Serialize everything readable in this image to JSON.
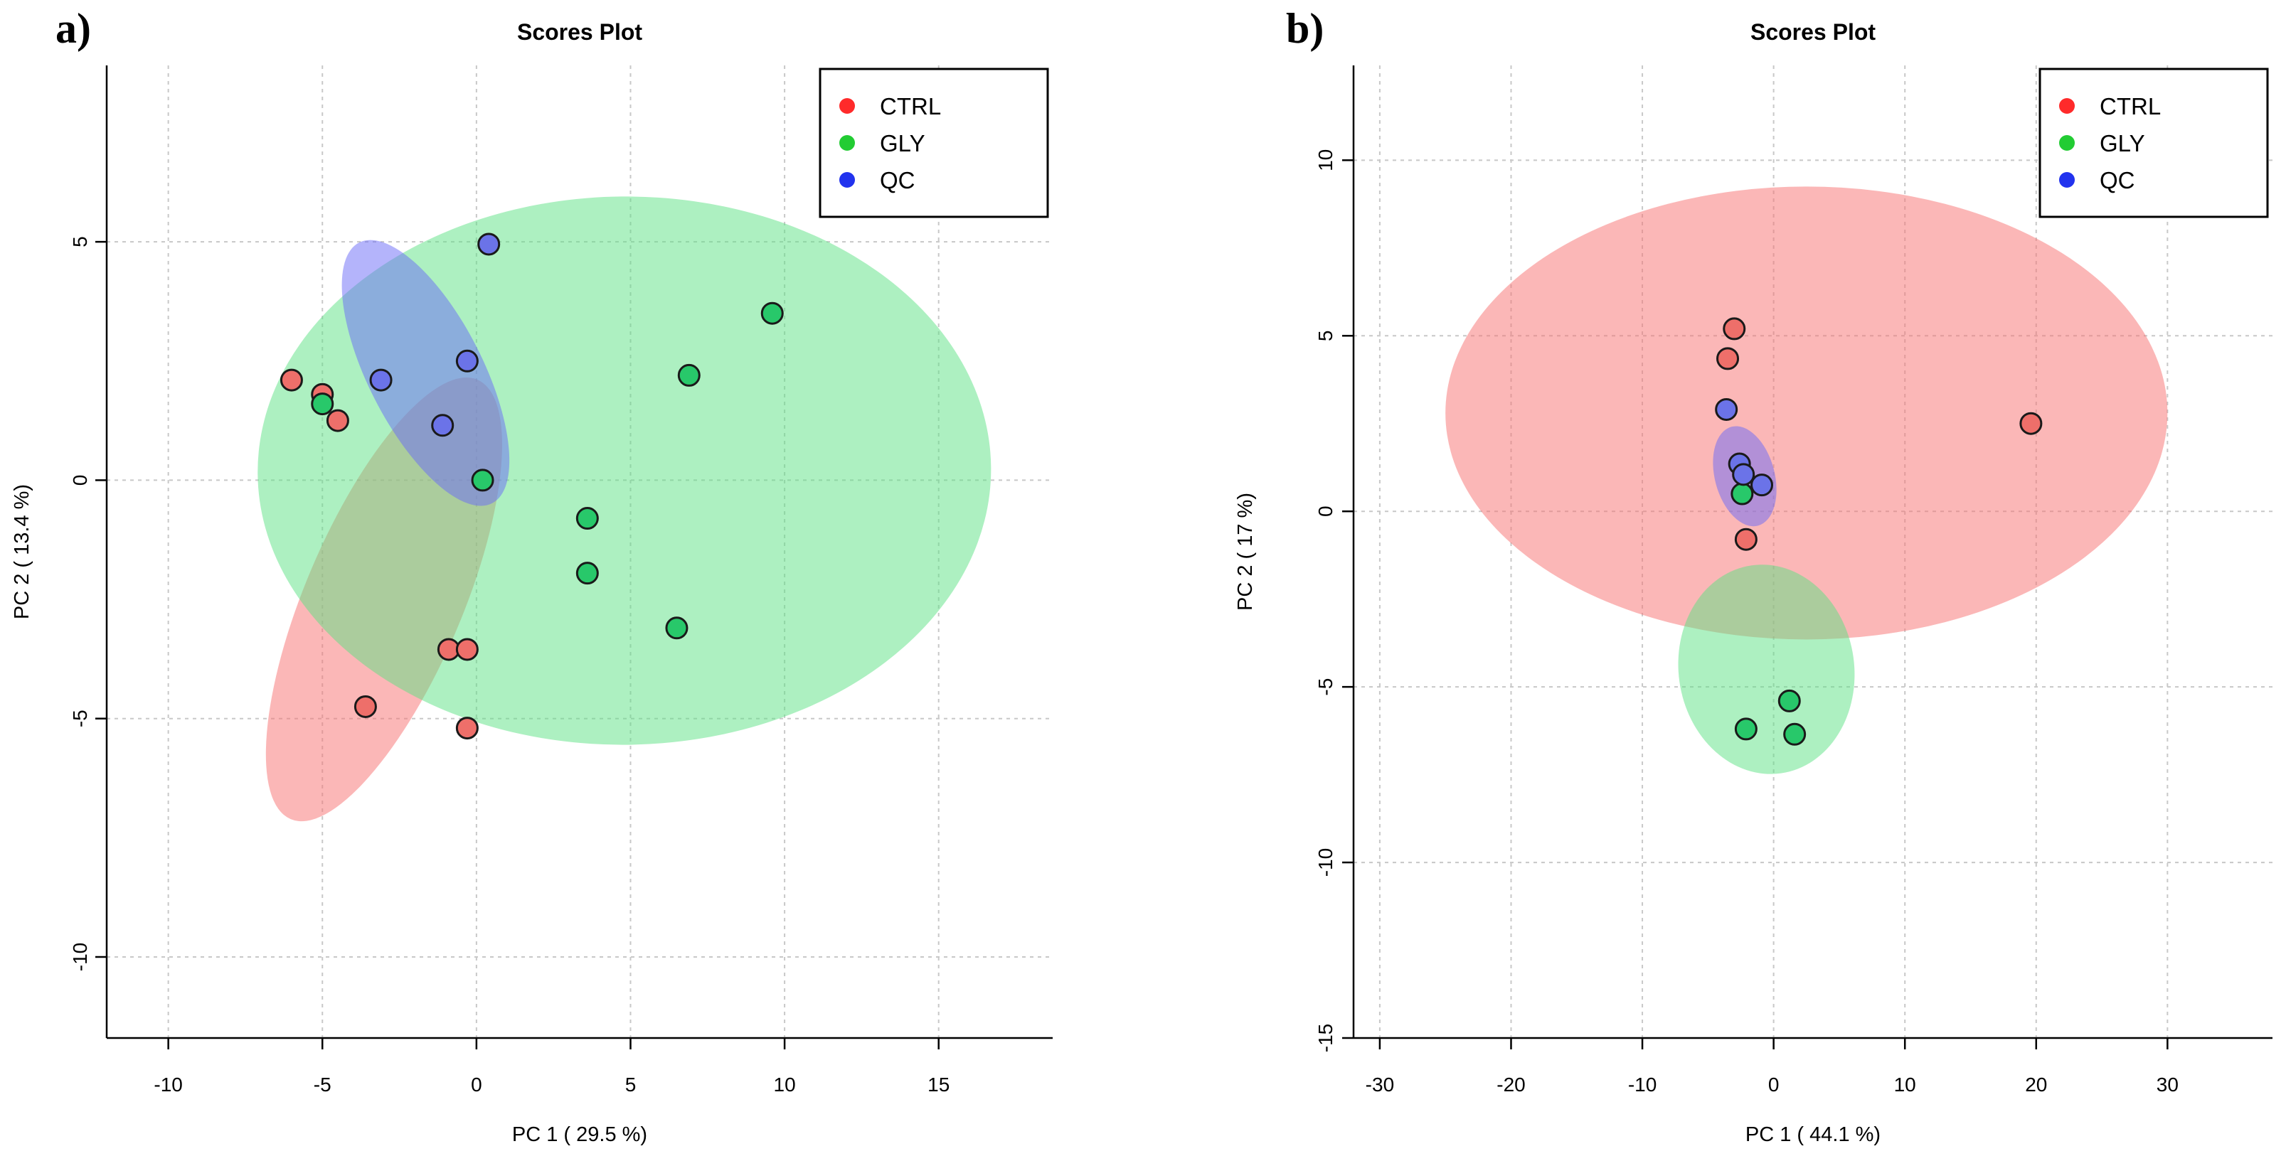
{
  "colors": {
    "CTRL": "#ff2a2a",
    "GLY": "#22cc33",
    "QC": "#2233ee",
    "CTRL_fill": "#f86f6f",
    "GLY_fill": "#5ce283",
    "QC_fill": "#6a6af7",
    "CTRL_point": "#ee6f6a",
    "GLY_point": "#28c86a",
    "QC_point": "#6b73e8"
  },
  "chart_data": [
    {
      "type": "scatter",
      "panel_label": "a)",
      "title": "Scores Plot",
      "xlabel": "PC 1 ( 29.5 %)",
      "ylabel": "PC 2 ( 13.4 %)",
      "xlim": [
        -12,
        18.7
      ],
      "ylim": [
        -11.7,
        8.7
      ],
      "xticks": [
        -10,
        -5,
        0,
        5,
        10,
        15
      ],
      "yticks": [
        -10,
        -5,
        0,
        5
      ],
      "grid": true,
      "legend_position": "top-right",
      "legend": [
        "CTRL",
        "GLY",
        "QC"
      ],
      "series": [
        {
          "name": "CTRL",
          "x": [
            -6.0,
            -5.0,
            -4.5,
            -3.6,
            -0.9,
            -0.3,
            -0.3
          ],
          "y": [
            2.1,
            1.8,
            1.25,
            -4.75,
            -3.55,
            -3.55,
            -5.2
          ],
          "ellipse": {
            "cx": -3.0,
            "cy": -2.5,
            "rx": 7.75,
            "ry": 1.65,
            "angle_deg": -67
          }
        },
        {
          "name": "GLY",
          "x": [
            -5.0,
            0.2,
            3.6,
            3.6,
            6.5,
            6.9,
            9.6
          ],
          "y": [
            1.6,
            0.0,
            -0.8,
            -1.95,
            -3.1,
            2.2,
            3.5
          ],
          "ellipse": {
            "cx": 4.8,
            "cy": 0.2,
            "rx": 11.9,
            "ry": 5.75,
            "angle_deg": -0.5
          }
        },
        {
          "name": "QC",
          "x": [
            -3.1,
            -1.1,
            -0.3,
            0.4
          ],
          "y": [
            2.1,
            1.15,
            2.5,
            4.95
          ],
          "ellipse": {
            "cx": -1.65,
            "cy": 2.25,
            "rx": 4.75,
            "ry": 1.2,
            "angle_deg": 63
          }
        }
      ]
    },
    {
      "type": "scatter",
      "panel_label": "b)",
      "title": "Scores Plot",
      "xlabel": "PC 1 ( 44.1 %)",
      "ylabel": "PC 2 ( 17 %)",
      "xlim": [
        -32,
        38
      ],
      "ylim": [
        -15,
        12.7
      ],
      "xticks": [
        -30,
        -20,
        -10,
        0,
        10,
        20,
        30
      ],
      "yticks": [
        -15,
        -10,
        -5,
        0,
        5,
        10
      ],
      "grid": true,
      "legend_position": "top-right",
      "legend": [
        "CTRL",
        "GLY",
        "QC"
      ],
      "series": [
        {
          "name": "CTRL",
          "x": [
            -3.0,
            -3.5,
            -2.1,
            19.6
          ],
          "y": [
            5.2,
            4.35,
            -0.8,
            2.5
          ],
          "ellipse": {
            "cx": 2.5,
            "cy": 2.8,
            "rx": 27.5,
            "ry": 6.45,
            "angle_deg": 0
          }
        },
        {
          "name": "GLY",
          "x": [
            -2.4,
            -2.1,
            1.2,
            1.6
          ],
          "y": [
            0.5,
            -6.2,
            -5.4,
            -6.35
          ],
          "ellipse": {
            "cx": -0.55,
            "cy": -4.5,
            "rx": 8.0,
            "ry": 2.5,
            "angle_deg": 82
          }
        },
        {
          "name": "QC",
          "x": [
            -3.6,
            -2.6,
            -2.3,
            -0.9
          ],
          "y": [
            2.9,
            1.35,
            1.05,
            0.75
          ],
          "ellipse": {
            "cx": -2.2,
            "cy": 1.0,
            "rx": 3.9,
            "ry": 0.85,
            "angle_deg": 75
          }
        }
      ]
    }
  ]
}
